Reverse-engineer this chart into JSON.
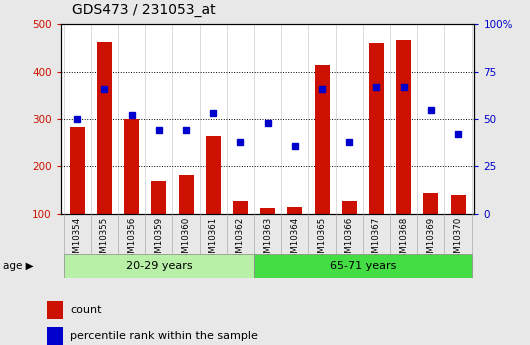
{
  "title": "GDS473 / 231053_at",
  "samples": [
    "GSM10354",
    "GSM10355",
    "GSM10356",
    "GSM10359",
    "GSM10360",
    "GSM10361",
    "GSM10362",
    "GSM10363",
    "GSM10364",
    "GSM10365",
    "GSM10366",
    "GSM10367",
    "GSM10368",
    "GSM10369",
    "GSM10370"
  ],
  "counts": [
    283,
    462,
    300,
    170,
    183,
    265,
    127,
    112,
    115,
    413,
    127,
    460,
    467,
    145,
    140
  ],
  "percentile_ranks": [
    50,
    66,
    52,
    44,
    44,
    53,
    38,
    48,
    36,
    66,
    38,
    67,
    67,
    55,
    42
  ],
  "groups": [
    {
      "label": "20-29 years",
      "start": 0,
      "end": 7,
      "color": "#b8f0a8"
    },
    {
      "label": "65-71 years",
      "start": 7,
      "end": 15,
      "color": "#44dd44"
    }
  ],
  "ylim_left": [
    100,
    500
  ],
  "ylim_right": [
    0,
    100
  ],
  "yticks_left": [
    100,
    200,
    300,
    400,
    500
  ],
  "yticks_right": [
    0,
    25,
    50,
    75,
    100
  ],
  "yticklabels_right": [
    "0",
    "25",
    "50",
    "75",
    "100%"
  ],
  "bar_color": "#CC1100",
  "marker_color": "#0000CC",
  "bar_bottom": 100,
  "age_label": "age",
  "legend_count": "count",
  "legend_pct": "percentile rank within the sample",
  "background_color": "#e8e8e8",
  "plot_bg": "#ffffff",
  "tick_label_bg": "#d0d0d0"
}
